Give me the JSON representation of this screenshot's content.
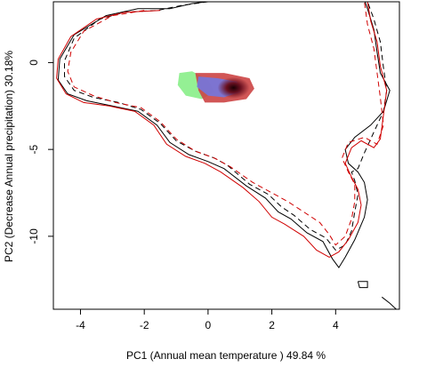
{
  "chart_data": {
    "type": "contour-density",
    "xlabel": "PC1 (Annual mean temperature ) 49.84 %",
    "ylabel": "PC2 (Decrease Annual precipitation) 30.18%",
    "xlim": [
      -4.85,
      6.0
    ],
    "ylim": [
      -14.2,
      3.5
    ],
    "x_ticks": [
      -4,
      -2,
      0,
      2,
      4
    ],
    "y_ticks": [
      0,
      -5,
      -10
    ],
    "grid": false,
    "colors": {
      "black_contour": "#000000",
      "red_contour": "#d00000",
      "green_density": "#88ee88",
      "blue_density": "#6f79e6",
      "red_density": "#cc4444",
      "core_density": "#2a0008"
    },
    "contours": [
      {
        "color": "black",
        "dash": "solid",
        "points": [
          [
            0.4,
            3.6
          ],
          [
            -0.5,
            3.4
          ],
          [
            -1.2,
            3.1
          ],
          [
            -2.2,
            3.1
          ],
          [
            -3.2,
            2.7
          ],
          [
            -4.2,
            1.6
          ],
          [
            -4.65,
            0.2
          ],
          [
            -4.7,
            -1.0
          ],
          [
            -4.4,
            -1.8
          ],
          [
            -3.8,
            -2.2
          ],
          [
            -3.0,
            -2.5
          ],
          [
            -2.2,
            -2.8
          ],
          [
            -1.6,
            -3.6
          ],
          [
            -1.2,
            -4.6
          ],
          [
            -0.6,
            -5.3
          ],
          [
            0.0,
            -5.7
          ],
          [
            0.5,
            -6.1
          ],
          [
            1.2,
            -7.1
          ],
          [
            1.8,
            -7.8
          ],
          [
            2.2,
            -8.6
          ],
          [
            2.6,
            -9.0
          ],
          [
            3.1,
            -9.8
          ],
          [
            3.6,
            -10.3
          ],
          [
            3.9,
            -11.3
          ],
          [
            4.1,
            -11.8
          ],
          [
            4.3,
            -11.2
          ],
          [
            4.6,
            -10.2
          ],
          [
            4.9,
            -8.9
          ],
          [
            5.0,
            -7.9
          ],
          [
            4.9,
            -6.9
          ],
          [
            4.7,
            -6.3
          ],
          [
            4.4,
            -5.8
          ],
          [
            4.3,
            -5.0
          ],
          [
            4.6,
            -4.3
          ],
          [
            5.1,
            -3.6
          ],
          [
            5.5,
            -2.8
          ],
          [
            5.7,
            -1.6
          ],
          [
            5.4,
            -0.6
          ],
          [
            5.3,
            0.6
          ],
          [
            5.2,
            1.9
          ],
          [
            5.0,
            3.1
          ],
          [
            4.9,
            3.6
          ]
        ]
      },
      {
        "color": "black",
        "dash": "dashed",
        "points": [
          [
            0.0,
            3.5
          ],
          [
            -0.8,
            3.3
          ],
          [
            -1.6,
            3.0
          ],
          [
            -2.6,
            2.9
          ],
          [
            -3.4,
            2.5
          ],
          [
            -4.2,
            1.4
          ],
          [
            -4.5,
            0.1
          ],
          [
            -4.5,
            -0.8
          ],
          [
            -4.2,
            -1.6
          ],
          [
            -3.6,
            -2.0
          ],
          [
            -2.8,
            -2.3
          ],
          [
            -2.1,
            -2.7
          ],
          [
            -1.5,
            -3.5
          ],
          [
            -1.0,
            -4.5
          ],
          [
            -0.4,
            -5.1
          ],
          [
            0.2,
            -5.5
          ],
          [
            0.6,
            -5.9
          ],
          [
            1.3,
            -7.0
          ],
          [
            1.9,
            -7.6
          ],
          [
            2.3,
            -8.3
          ],
          [
            2.7,
            -8.8
          ],
          [
            3.2,
            -9.6
          ],
          [
            3.7,
            -10.1
          ],
          [
            4.0,
            -10.8
          ],
          [
            4.3,
            -10.5
          ],
          [
            4.5,
            -9.7
          ],
          [
            4.6,
            -8.6
          ],
          [
            4.7,
            -7.6
          ],
          [
            4.6,
            -6.8
          ],
          [
            4.5,
            -6.3
          ],
          [
            4.7,
            -6.1
          ],
          [
            4.9,
            -5.2
          ],
          [
            5.2,
            -4.0
          ],
          [
            5.5,
            -2.8
          ],
          [
            5.6,
            -1.6
          ],
          [
            5.5,
            -0.3
          ],
          [
            5.4,
            1.2
          ],
          [
            5.2,
            2.5
          ],
          [
            5.0,
            3.5
          ]
        ]
      },
      {
        "color": "red",
        "dash": "solid",
        "points": [
          [
            -1.5,
            3.0
          ],
          [
            -2.6,
            2.9
          ],
          [
            -3.5,
            2.5
          ],
          [
            -4.3,
            1.5
          ],
          [
            -4.7,
            0.2
          ],
          [
            -4.75,
            -0.9
          ],
          [
            -4.45,
            -1.8
          ],
          [
            -3.9,
            -2.3
          ],
          [
            -3.1,
            -2.5
          ],
          [
            -2.3,
            -2.8
          ],
          [
            -1.7,
            -3.6
          ],
          [
            -1.3,
            -4.7
          ],
          [
            -0.7,
            -5.4
          ],
          [
            -0.1,
            -5.8
          ],
          [
            0.4,
            -6.3
          ],
          [
            1.1,
            -7.2
          ],
          [
            1.6,
            -8.0
          ],
          [
            2.0,
            -8.9
          ],
          [
            2.4,
            -9.3
          ],
          [
            3.0,
            -10.0
          ],
          [
            3.4,
            -10.8
          ],
          [
            3.8,
            -11.2
          ],
          [
            4.1,
            -10.9
          ],
          [
            4.4,
            -10.2
          ],
          [
            4.7,
            -9.2
          ],
          [
            4.8,
            -8.2
          ],
          [
            4.7,
            -7.3
          ],
          [
            4.5,
            -6.6
          ],
          [
            4.3,
            -5.8
          ],
          [
            4.5,
            -4.9
          ],
          [
            4.8,
            -4.5
          ],
          [
            5.2,
            -4.9
          ],
          [
            5.4,
            -4.4
          ],
          [
            5.5,
            -3.0
          ],
          [
            5.6,
            -1.6
          ],
          [
            5.4,
            -0.2
          ],
          [
            5.3,
            1.2
          ],
          [
            5.1,
            2.4
          ],
          [
            5.0,
            3.5
          ]
        ]
      },
      {
        "color": "red",
        "dash": "dashed",
        "points": [
          [
            -2.0,
            3.0
          ],
          [
            -3.0,
            2.7
          ],
          [
            -3.9,
            1.8
          ],
          [
            -4.3,
            0.6
          ],
          [
            -4.4,
            -0.5
          ],
          [
            -4.2,
            -1.4
          ],
          [
            -3.6,
            -1.9
          ],
          [
            -2.9,
            -2.3
          ],
          [
            -2.1,
            -2.6
          ],
          [
            -1.5,
            -3.4
          ],
          [
            -1.0,
            -4.4
          ],
          [
            -0.4,
            -5.1
          ],
          [
            0.2,
            -5.5
          ],
          [
            0.7,
            -6.0
          ],
          [
            1.4,
            -6.9
          ],
          [
            2.0,
            -7.5
          ],
          [
            2.5,
            -8.0
          ],
          [
            3.0,
            -8.6
          ],
          [
            3.5,
            -9.2
          ],
          [
            3.8,
            -9.9
          ],
          [
            4.0,
            -10.5
          ],
          [
            4.3,
            -10.0
          ],
          [
            4.5,
            -9.0
          ],
          [
            4.6,
            -8.0
          ],
          [
            4.6,
            -7.0
          ],
          [
            4.4,
            -6.3
          ],
          [
            4.2,
            -5.5
          ],
          [
            4.4,
            -4.6
          ],
          [
            4.9,
            -4.3
          ],
          [
            5.3,
            -4.7
          ],
          [
            5.5,
            -3.6
          ],
          [
            5.4,
            -2.0
          ],
          [
            5.3,
            -0.6
          ],
          [
            5.2,
            0.8
          ],
          [
            5.0,
            2.2
          ],
          [
            4.9,
            3.5
          ]
        ]
      },
      {
        "color": "black",
        "dash": "solid",
        "points": [
          [
            4.7,
            -12.6
          ],
          [
            5.0,
            -12.6
          ],
          [
            5.0,
            -12.95
          ],
          [
            4.75,
            -12.95
          ],
          [
            4.7,
            -12.6
          ]
        ]
      },
      {
        "color": "black",
        "dash": "solid",
        "points": [
          [
            5.45,
            -13.5
          ],
          [
            5.7,
            -13.85
          ],
          [
            5.9,
            -14.2
          ]
        ]
      }
    ],
    "density_patches": [
      {
        "color": "green",
        "points": [
          [
            -0.9,
            -0.6
          ],
          [
            -0.5,
            -0.5
          ],
          [
            0.0,
            -1.0
          ],
          [
            0.2,
            -1.7
          ],
          [
            -0.2,
            -2.1
          ],
          [
            -0.7,
            -1.9
          ],
          [
            -0.95,
            -1.3
          ]
        ]
      },
      {
        "color": "red",
        "points": [
          [
            -0.4,
            -0.6
          ],
          [
            0.5,
            -0.6
          ],
          [
            1.3,
            -0.9
          ],
          [
            1.45,
            -1.5
          ],
          [
            1.2,
            -2.1
          ],
          [
            0.5,
            -2.3
          ],
          [
            -0.1,
            -2.3
          ],
          [
            -0.3,
            -1.6
          ]
        ]
      },
      {
        "color": "blue",
        "points": [
          [
            -0.3,
            -0.8
          ],
          [
            0.3,
            -0.9
          ],
          [
            0.9,
            -1.1
          ],
          [
            1.0,
            -1.7
          ],
          [
            0.5,
            -2.0
          ],
          [
            0.0,
            -1.9
          ],
          [
            -0.35,
            -1.4
          ]
        ]
      }
    ],
    "density_core": {
      "center": [
        0.8,
        -1.45
      ]
    }
  }
}
